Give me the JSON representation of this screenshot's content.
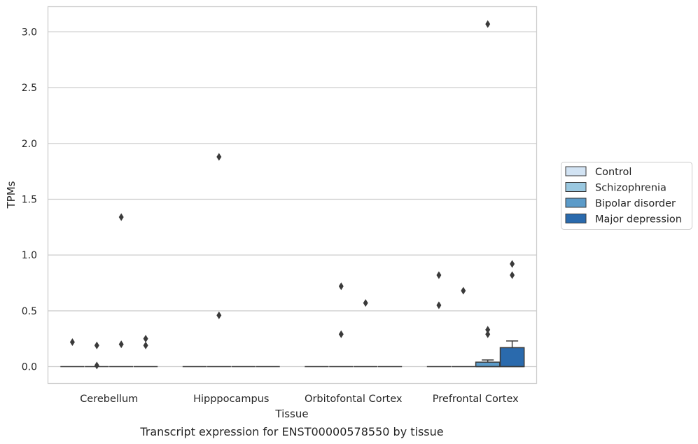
{
  "chart_data": {
    "type": "box",
    "xlabel": "Tissue",
    "ylabel": "TPMs",
    "caption": "Transcript expression for ENST00000578550 by tissue",
    "categories": [
      "Cerebellum",
      "Hipppocampus",
      "Orbitofontal Cortex",
      "Prefrontal Cortex"
    ],
    "ylim": [
      -0.15,
      3.23
    ],
    "yticks": [
      0.0,
      0.5,
      1.0,
      1.5,
      2.0,
      2.5,
      3.0
    ],
    "ytick_labels": [
      "0.0",
      "0.5",
      "1.0",
      "1.5",
      "2.0",
      "2.5",
      "3.0"
    ],
    "grid": "horizontal",
    "legend_position": "right",
    "series": [
      {
        "name": "Control",
        "color": "#d2e3f3",
        "boxes": [
          {
            "q1": 0,
            "median": 0,
            "q3": 0,
            "whisker_low": 0,
            "whisker_high": 0,
            "outliers": [
              0.22
            ]
          },
          {
            "q1": 0,
            "median": 0,
            "q3": 0,
            "whisker_low": 0,
            "whisker_high": 0,
            "outliers": []
          },
          {
            "q1": 0,
            "median": 0,
            "q3": 0,
            "whisker_low": 0,
            "whisker_high": 0,
            "outliers": []
          },
          {
            "q1": 0,
            "median": 0,
            "q3": 0,
            "whisker_low": 0,
            "whisker_high": 0,
            "outliers": [
              0.82,
              0.55
            ]
          }
        ]
      },
      {
        "name": "Schizophrenia",
        "color": "#9ac8e0",
        "boxes": [
          {
            "q1": 0,
            "median": 0,
            "q3": 0,
            "whisker_low": 0,
            "whisker_high": 0,
            "outliers": [
              0.19,
              0.01
            ]
          },
          {
            "q1": 0,
            "median": 0,
            "q3": 0,
            "whisker_low": 0,
            "whisker_high": 0,
            "outliers": [
              1.88,
              0.46
            ]
          },
          {
            "q1": 0,
            "median": 0,
            "q3": 0,
            "whisker_low": 0,
            "whisker_high": 0,
            "outliers": [
              0.72,
              0.29
            ]
          },
          {
            "q1": 0,
            "median": 0,
            "q3": 0,
            "whisker_low": 0,
            "whisker_high": 0,
            "outliers": [
              0.68
            ]
          }
        ]
      },
      {
        "name": "Bipolar disorder",
        "color": "#5b9bc9",
        "boxes": [
          {
            "q1": 0,
            "median": 0,
            "q3": 0,
            "whisker_low": 0,
            "whisker_high": 0,
            "outliers": [
              1.34,
              0.2
            ]
          },
          {
            "q1": 0,
            "median": 0,
            "q3": 0,
            "whisker_low": 0,
            "whisker_high": 0,
            "outliers": []
          },
          {
            "q1": 0,
            "median": 0,
            "q3": 0,
            "whisker_low": 0,
            "whisker_high": 0,
            "outliers": [
              0.57
            ]
          },
          {
            "q1": 0,
            "median": 0,
            "q3": 0.04,
            "whisker_low": 0,
            "whisker_high": 0.06,
            "outliers": [
              3.07,
              0.33,
              0.29
            ]
          }
        ]
      },
      {
        "name": "Major depression",
        "color": "#2a6aad",
        "boxes": [
          {
            "q1": 0,
            "median": 0,
            "q3": 0,
            "whisker_low": 0,
            "whisker_high": 0,
            "outliers": [
              0.25,
              0.19
            ]
          },
          {
            "q1": 0,
            "median": 0,
            "q3": 0,
            "whisker_low": 0,
            "whisker_high": 0,
            "outliers": []
          },
          {
            "q1": 0,
            "median": 0,
            "q3": 0,
            "whisker_low": 0,
            "whisker_high": 0,
            "outliers": []
          },
          {
            "q1": 0,
            "median": 0,
            "q3": 0.17,
            "whisker_low": 0,
            "whisker_high": 0.23,
            "outliers": [
              0.92,
              0.82
            ]
          }
        ]
      }
    ]
  }
}
